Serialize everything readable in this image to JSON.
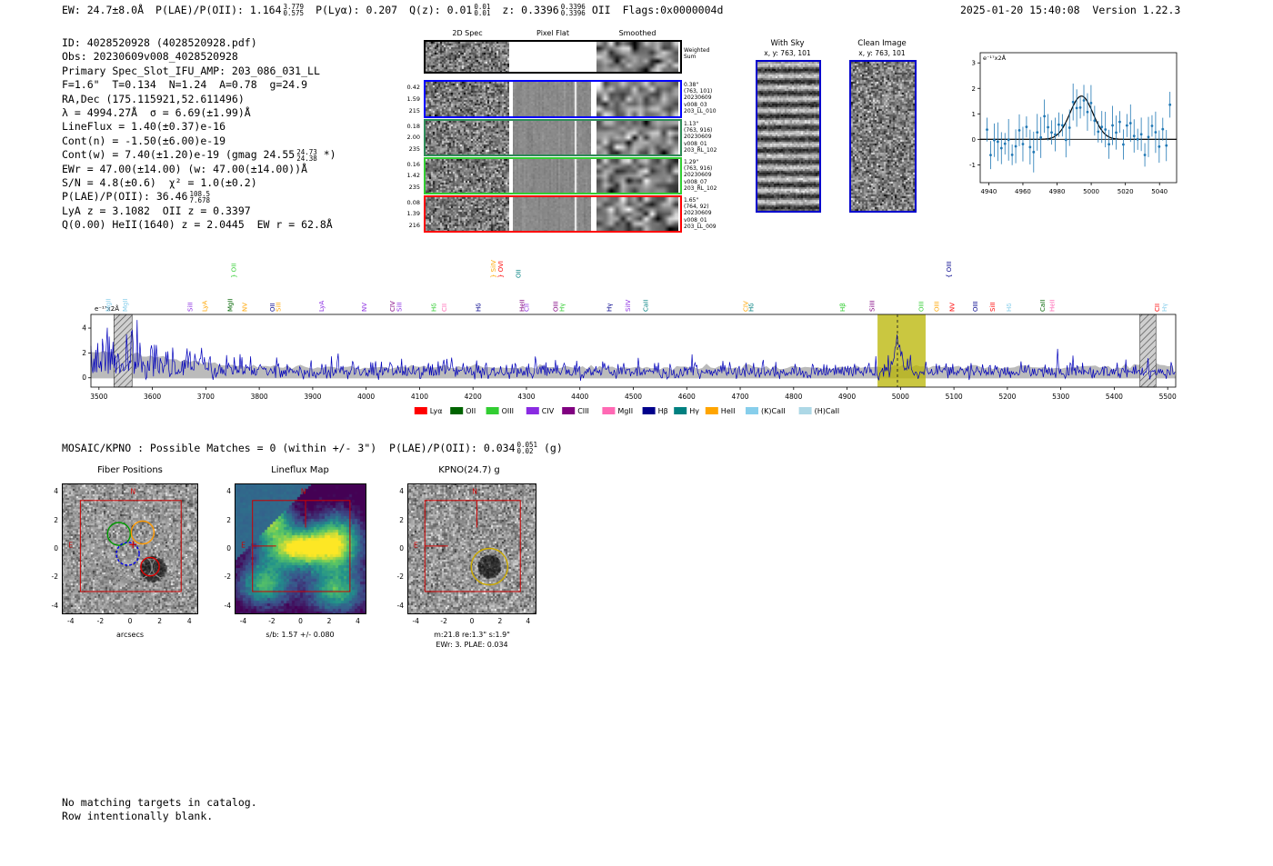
{
  "header": {
    "ew": "EW: 24.7±8.0Å",
    "plae": "P(LAE)/P(OII): 1.164",
    "plae_hi": "3.779",
    "plae_lo": "0.575",
    "plya": "P(Lyα): 0.207",
    "qz": "Q(z): 0.01",
    "qz_hi": "0.01",
    "qz_lo": "0.01",
    "z": "z: 0.3396",
    "z_hi": "0.3396",
    "z_lo": "0.3396",
    "z_type": "OII",
    "flags": "Flags:0x0000004d",
    "timestamp": "2025-01-20 15:40:08  Version 1.22.3"
  },
  "info": {
    "lines": [
      {
        "text": "ID: 4028520928 (4028520928.pdf)"
      },
      {
        "text": "Obs: 20230609v008_4028520928"
      },
      {
        "text": "Primary Spec_Slot_IFU_AMP: 203_086_031_LL"
      },
      {
        "text": "F=1.6\"  T=0.134  N=1.24  A=0.78  g=24.9"
      },
      {
        "text": "RA,Dec (175.115921,52.611496)"
      },
      {
        "text": "λ = 4994.27Å  σ = 6.69(±1.99)Å"
      },
      {
        "text": "LineFlux = 1.40(±0.37)e-16"
      },
      {
        "text": "Cont(n) = -1.50(±6.00)e-19"
      },
      {
        "text": "Cont(w) = 7.40(±1.20)e-19 (gmag 24.55",
        "hi": "24.73",
        "lo": "24.38",
        "tail": " *)"
      },
      {
        "text": "EWr = 47.00(±14.00) (w: 47.00(±14.00))Å"
      },
      {
        "text": "S/N = 4.8(±0.6)  χ² = 1.0(±0.2)"
      },
      {
        "text": "P(LAE)/P(OII): 36.46",
        "hi": "108.5",
        "lo": "7.678"
      },
      {
        "text": "LyA z = 3.1082  OII z = 0.3397"
      },
      {
        "text": "Q(0.00) HeII(1640) z = 2.0445  EW r = 62.8Å"
      }
    ]
  },
  "spec2d": {
    "col_headers": [
      "2D Spec",
      "Pixel Flat",
      "Smoothed"
    ],
    "rows": [
      {
        "border": "#000000",
        "left_lines": [],
        "right_lines": [
          "Weighted",
          "Sum"
        ],
        "kind": "sum"
      },
      {
        "border": "#0000ff",
        "left_lines": [
          "0.42",
          "1.59",
          "215"
        ],
        "right_lines": [
          "0.38\"",
          "(763, 101)",
          "20230609",
          "v008_03",
          "203_LL_010"
        ],
        "kind": "fiber"
      },
      {
        "border": "#2e8b57",
        "left_lines": [
          "0.18",
          "2.00",
          "235"
        ],
        "right_lines": [
          "1.13\"",
          "(763, 916)",
          "20230609",
          "v008_01",
          "203_RL_102"
        ],
        "kind": "fiber"
      },
      {
        "border": "#32cd32",
        "left_lines": [
          "0.16",
          "1.42",
          "235"
        ],
        "right_lines": [
          "1.29\"",
          "(763, 916)",
          "20230609",
          "v008_07",
          "203_RL_102"
        ],
        "kind": "fiber"
      },
      {
        "border": "#ff0000",
        "left_lines": [
          "0.08",
          "1.39",
          "216"
        ],
        "right_lines": [
          "1.65\"",
          "(764, 92)",
          "20230609",
          "v008_01",
          "203_LL_009"
        ],
        "kind": "fiber"
      }
    ]
  },
  "cutouts": {
    "with_sky": {
      "title": "With Sky",
      "coords": "x, y: 763, 101"
    },
    "clean": {
      "title": "Clean Image",
      "coords": "x, y: 763, 101"
    }
  },
  "mosaic_line": {
    "text": "MOSAIC/KPNO : Possible Matches = 0 (within +/- 3\")  P(LAE)/P(OII): 0.034",
    "hi": "0.051",
    "lo": "0.02",
    "tail": " (g)"
  },
  "footer": {
    "lines": [
      "No matching targets in catalog.",
      "Row intentionally blank."
    ]
  },
  "chart_data": [
    {
      "id": "line_fit",
      "type": "scatter",
      "title": "",
      "ylabel": "e⁻¹⁷x2Å",
      "xlim": [
        4935,
        5050
      ],
      "ylim": [
        -1.7,
        3.4
      ],
      "xticks": [
        4940,
        4960,
        4980,
        5000,
        5020,
        5040
      ],
      "yticks": [
        -1,
        0,
        1,
        2,
        3
      ],
      "gaussian": {
        "center": 4994.27,
        "sigma": 6.69,
        "amplitude": 1.7,
        "baseline": 0
      },
      "point_spacing": 2.1,
      "point_noise": 0.45,
      "error_bar": 0.55,
      "marker_color": "#1f77b4",
      "curve_color": "#000000"
    },
    {
      "id": "full_spectrum",
      "type": "line",
      "ylabel": "e⁻¹⁷x2Å",
      "xlim": [
        3485,
        5515
      ],
      "ylim": [
        -0.75,
        5.1
      ],
      "xticks": [
        3500,
        3600,
        3700,
        3800,
        3900,
        4000,
        4100,
        4200,
        4300,
        4400,
        4500,
        4600,
        4700,
        4800,
        4900,
        5000,
        5100,
        5200,
        5300,
        5400,
        5500
      ],
      "yticks": [
        0,
        2,
        4
      ],
      "line_color": "#0000bb",
      "error_band_color": "#bbbbbb",
      "highlight_band": {
        "x0": 4957,
        "x1": 5047,
        "color": "#b8b400"
      },
      "marker_line": {
        "x": 4994.27,
        "style": "dashed"
      },
      "hatched_bands": [
        {
          "x0": 3528,
          "x1": 3562
        },
        {
          "x0": 5448,
          "x1": 5478
        }
      ],
      "emission_peak": {
        "center": 4994.27,
        "sigma": 6.7,
        "amplitude": 2.35
      },
      "line_labels": [
        {
          "x": 3522,
          "label": "MgII",
          "color": "#87ceeb",
          "row": 1
        },
        {
          "x": 3553,
          "label": "MgII",
          "color": "#87ceeb",
          "row": 1
        },
        {
          "x": 3675,
          "label": "SiII",
          "color": "#8a2be2",
          "row": 1
        },
        {
          "x": 3702,
          "label": "LyA",
          "color": "#ffa500",
          "row": 1
        },
        {
          "x": 3750,
          "label": "MgII",
          "color": "#006400",
          "row": 1
        },
        {
          "x": 3756,
          "label": "} OII",
          "color": "#32cd32",
          "row": 2
        },
        {
          "x": 3777,
          "label": "NV",
          "color": "#ffa500",
          "row": 1
        },
        {
          "x": 3829,
          "label": "OII",
          "color": "#00008b",
          "row": 1
        },
        {
          "x": 3840,
          "label": "SiII",
          "color": "#ffa500",
          "row": 1
        },
        {
          "x": 3921,
          "label": "LyA",
          "color": "#8a2be2",
          "row": 1
        },
        {
          "x": 4001,
          "label": "NV",
          "color": "#8a2be2",
          "row": 1
        },
        {
          "x": 4053,
          "label": "CIV",
          "color": "#800080",
          "row": 1
        },
        {
          "x": 4066,
          "label": "SiII",
          "color": "#8a2be2",
          "row": 1
        },
        {
          "x": 4131,
          "label": "Hδ",
          "color": "#32cd32",
          "row": 1
        },
        {
          "x": 4150,
          "label": "CII",
          "color": "#ff69b4",
          "row": 1
        },
        {
          "x": 4214,
          "label": "Hδ",
          "color": "#00008b",
          "row": 1
        },
        {
          "x": 4242,
          "label": "} SiIV",
          "color": "#ffa500",
          "row": 2
        },
        {
          "x": 4256,
          "label": "} OVI",
          "color": "#ff0000",
          "row": 2
        },
        {
          "x": 4289,
          "label": "OII",
          "color": "#008080",
          "row": 2
        },
        {
          "x": 4296,
          "label": "HeII",
          "color": "#800080",
          "row": 1
        },
        {
          "x": 4304,
          "label": "CII",
          "color": "#8a2be2",
          "row": 1
        },
        {
          "x": 4359,
          "label": "OIII",
          "color": "#800080",
          "row": 1
        },
        {
          "x": 4371,
          "label": "Hγ",
          "color": "#32cd32",
          "row": 1
        },
        {
          "x": 4459,
          "label": "Hγ",
          "color": "#00008b",
          "row": 1
        },
        {
          "x": 4494,
          "label": "SiIV",
          "color": "#8a2be2",
          "row": 1
        },
        {
          "x": 4527,
          "label": "CaII",
          "color": "#008080",
          "row": 1
        },
        {
          "x": 4714,
          "label": "CIV",
          "color": "#ffa500",
          "row": 1
        },
        {
          "x": 4725,
          "label": "Hδ",
          "color": "#008080",
          "row": 1
        },
        {
          "x": 4896,
          "label": "Hβ",
          "color": "#32cd32",
          "row": 1
        },
        {
          "x": 4951,
          "label": "SiIII",
          "color": "#800080",
          "row": 1
        },
        {
          "x": 5043,
          "label": "OIII",
          "color": "#32cd32",
          "row": 1
        },
        {
          "x": 5072,
          "label": "OIII",
          "color": "#ffa500",
          "row": 1
        },
        {
          "x": 5095,
          "label": "{ OIII",
          "color": "#00008b",
          "row": 2
        },
        {
          "x": 5101,
          "label": "NV",
          "color": "#ff0000",
          "row": 1
        },
        {
          "x": 5144,
          "label": "OIII",
          "color": "#00008b",
          "row": 1
        },
        {
          "x": 5176,
          "label": "SiII",
          "color": "#ff0000",
          "row": 1
        },
        {
          "x": 5207,
          "label": "Hδ",
          "color": "#87ceeb",
          "row": 1
        },
        {
          "x": 5270,
          "label": "CaII",
          "color": "#006400",
          "row": 1
        },
        {
          "x": 5288,
          "label": "HeII",
          "color": "#ff69b4",
          "row": 1
        },
        {
          "x": 5484,
          "label": "CII",
          "color": "#ff0000",
          "row": 1
        },
        {
          "x": 5498,
          "label": "Hγ",
          "color": "#87ceeb",
          "row": 1
        }
      ],
      "legend": [
        {
          "label": "Lyα",
          "color": "#ff0000"
        },
        {
          "label": "OII",
          "color": "#006400"
        },
        {
          "label": "OIII",
          "color": "#32cd32"
        },
        {
          "label": "CIV",
          "color": "#8a2be2"
        },
        {
          "label": "CIII",
          "color": "#800080"
        },
        {
          "label": "MgII",
          "color": "#ff69b4"
        },
        {
          "label": "Hβ",
          "color": "#00008b"
        },
        {
          "label": "Hγ",
          "color": "#008080"
        },
        {
          "label": "HeII",
          "color": "#ffa500"
        },
        {
          "label": "(K)CaII",
          "color": "#87ceeb"
        },
        {
          "label": "(H)CaII",
          "color": "#add8e6"
        }
      ]
    },
    {
      "id": "fiber_positions",
      "type": "heatmap",
      "title": "Fiber Positions",
      "xlabel": "arcsecs",
      "xlim": [
        -4.6,
        4.6
      ],
      "ylim": [
        -4.6,
        4.6
      ],
      "ticks": [
        -4,
        -2,
        0,
        2,
        4
      ],
      "compass": {
        "north": "N",
        "east": "E"
      },
      "overlay": {
        "square": {
          "x0": -3.35,
          "y0": -3.0,
          "x1": 3.45,
          "y1": 3.4
        },
        "cross": {
          "x": 0.2,
          "y": 0.3
        },
        "circles": [
          {
            "x": -0.75,
            "y": 1.05,
            "r": 0.77,
            "color": "#009900",
            "dash": false
          },
          {
            "x": 0.85,
            "y": 1.15,
            "r": 0.77,
            "color": "#ff9900",
            "dash": false
          },
          {
            "x": -0.15,
            "y": -0.35,
            "r": 0.77,
            "color": "#0000ee",
            "dash": true
          },
          {
            "x": 1.35,
            "y": -1.25,
            "r": 0.62,
            "color": "#dd0000",
            "dash": false
          }
        ],
        "blob": {
          "x": 1.55,
          "y": -1.45,
          "r": 0.85
        }
      }
    },
    {
      "id": "lineflux_map",
      "type": "heatmap",
      "title": "Lineflux Map",
      "xlabel": "s/b: 1.57 +/- 0.080",
      "xlim": [
        -4.6,
        4.6
      ],
      "ylim": [
        -4.6,
        4.6
      ],
      "ticks": [
        -4,
        -2,
        0,
        2,
        4
      ],
      "compass": {
        "north": "N",
        "east": "E"
      },
      "overlay": {
        "square": {
          "x0": -3.35,
          "y0": -3.0,
          "x1": 3.45,
          "y1": 3.4
        },
        "guides": [
          {
            "x1": 0.35,
            "y1": 3.4,
            "x2": 0.35,
            "y2": 1.5
          },
          {
            "x1": -3.35,
            "y1": 0.2,
            "x2": -1.7,
            "y2": 0.2
          }
        ]
      }
    },
    {
      "id": "kpno_g",
      "type": "heatmap",
      "title": "KPNO(24.7) g",
      "xlabel": "m:21.8 re:1.3\" s:1.9\"",
      "xlabel2": "EWr: 3. PLAE: 0.034",
      "xlim": [
        -4.6,
        4.6
      ],
      "ylim": [
        -4.6,
        4.6
      ],
      "ticks": [
        -4,
        -2,
        0,
        2,
        4
      ],
      "compass": {
        "north": "N",
        "east": "E"
      },
      "overlay": {
        "square": {
          "x0": -3.35,
          "y0": -3.0,
          "x1": 3.45,
          "y1": 3.4
        },
        "guides": [
          {
            "x1": 0.35,
            "y1": 3.4,
            "x2": 0.35,
            "y2": 1.5
          },
          {
            "x1": -3.35,
            "y1": 0.2,
            "x2": -1.7,
            "y2": 0.2
          }
        ],
        "circles": [
          {
            "x": 1.25,
            "y": -1.25,
            "r": 1.3,
            "color": "#ccaa00",
            "dash": false
          }
        ],
        "blob": {
          "x": 1.25,
          "y": -1.25,
          "r": 0.8
        }
      }
    }
  ]
}
